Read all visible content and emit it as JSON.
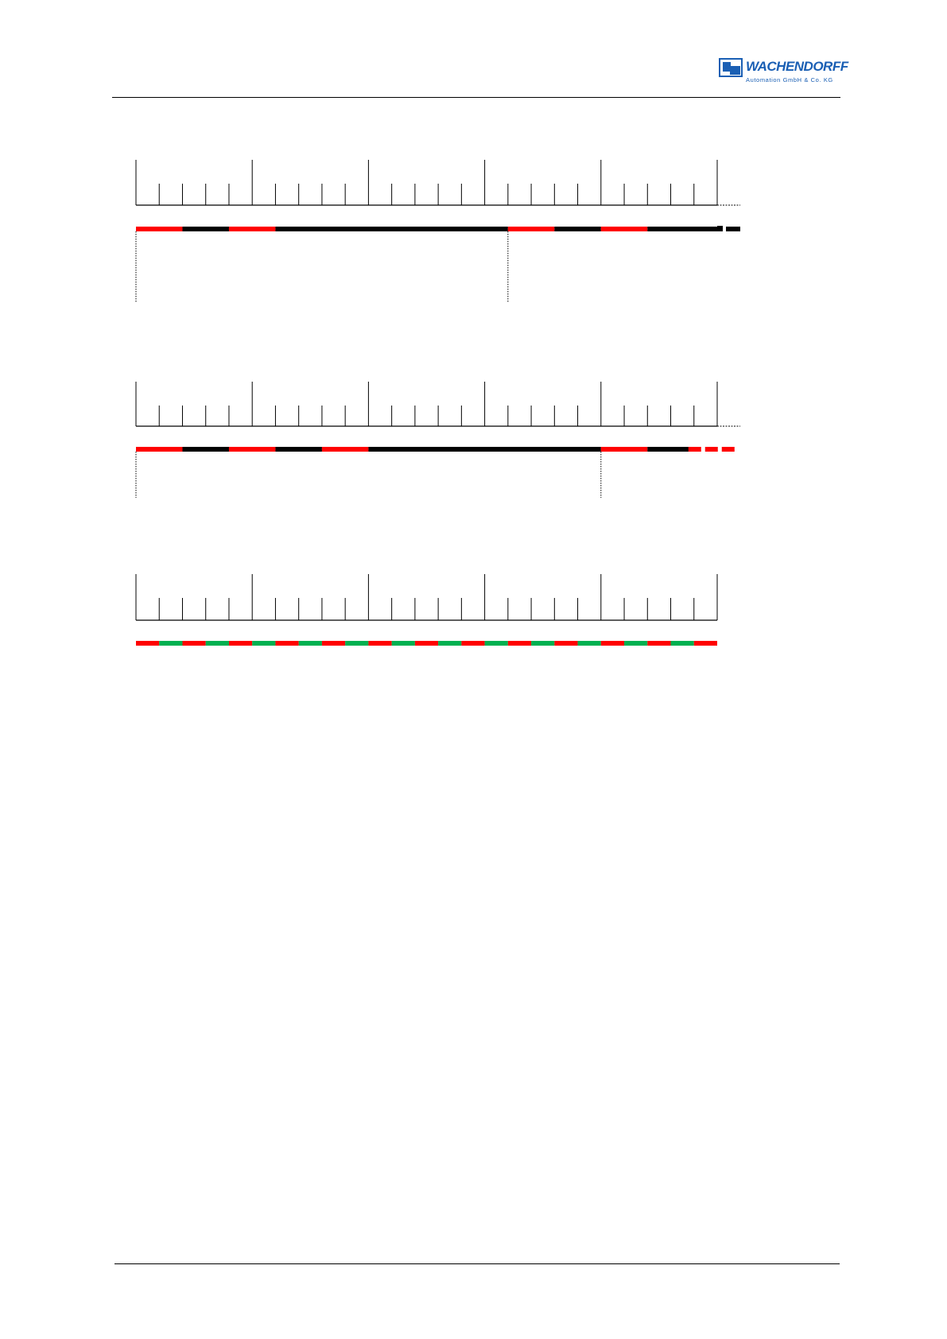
{
  "header": {
    "logo": {
      "name": "WACHENDORFF",
      "subtitle": "Automation GmbH & Co. KG",
      "color": "#1a5fb4"
    }
  },
  "colors": {
    "red": "#ff0000",
    "black": "#000000",
    "green": "#00b050"
  },
  "diagrams": [
    {
      "ruler_units": 25,
      "major_every": 5,
      "dotted_continuation": true,
      "bar": [
        {
          "color": "red",
          "from": 0,
          "to": 2
        },
        {
          "color": "black",
          "from": 2,
          "to": 4
        },
        {
          "color": "red",
          "from": 4,
          "to": 6
        },
        {
          "color": "black",
          "from": 6,
          "to": 16
        },
        {
          "color": "red",
          "from": 16,
          "to": 18
        },
        {
          "color": "black",
          "from": 18,
          "to": 20
        },
        {
          "color": "red",
          "from": 20,
          "to": 22
        },
        {
          "color": "black",
          "from": 22,
          "to": 25
        }
      ],
      "bar_continuation_color": "black",
      "markers": [
        0,
        16
      ]
    },
    {
      "ruler_units": 25,
      "major_every": 5,
      "dotted_continuation": true,
      "bar": [
        {
          "color": "red",
          "from": 0,
          "to": 2
        },
        {
          "color": "black",
          "from": 2,
          "to": 4
        },
        {
          "color": "red",
          "from": 4,
          "to": 6
        },
        {
          "color": "black",
          "from": 6,
          "to": 8
        },
        {
          "color": "red",
          "from": 8,
          "to": 10
        },
        {
          "color": "black",
          "from": 10,
          "to": 20
        },
        {
          "color": "red",
          "from": 20,
          "to": 22
        },
        {
          "color": "black",
          "from": 22,
          "to": 24
        }
      ],
      "bar_continuation_color": "red",
      "markers": [
        0,
        20
      ]
    },
    {
      "ruler_units": 25,
      "major_every": 5,
      "dotted_continuation": false,
      "bar_alternating": [
        "red",
        "green"
      ],
      "markers": []
    }
  ]
}
